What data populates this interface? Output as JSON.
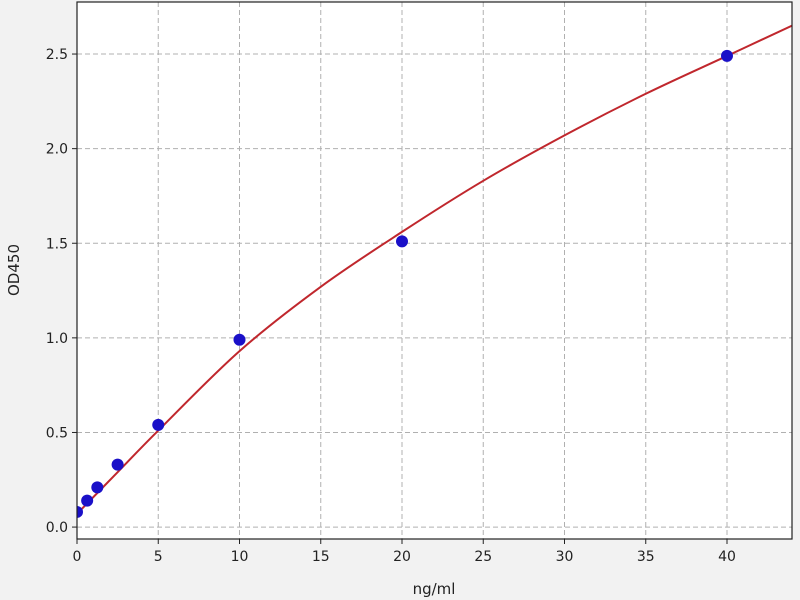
{
  "chart_data": {
    "type": "scatter",
    "xlabel": "ng/ml",
    "ylabel": "OD450",
    "xlim": [
      0,
      44
    ],
    "ylim": [
      -0.063,
      2.775
    ],
    "xticks": [
      0,
      5,
      10,
      15,
      20,
      25,
      30,
      35,
      40
    ],
    "yticks": [
      0.0,
      0.5,
      1.0,
      1.5,
      2.0,
      2.5
    ],
    "xtick_labels": [
      "0",
      "5",
      "10",
      "15",
      "20",
      "25",
      "30",
      "35",
      "40"
    ],
    "ytick_labels": [
      "0.0",
      "0.5",
      "1.0",
      "1.5",
      "2.0",
      "2.5"
    ],
    "grid": true,
    "points": {
      "x": [
        0,
        0.625,
        1.25,
        2.5,
        5,
        10,
        20,
        40
      ],
      "y": [
        0.08,
        0.14,
        0.21,
        0.33,
        0.54,
        0.99,
        1.51,
        2.49
      ],
      "color": "#1a10c8"
    },
    "fit_curve": {
      "x": [
        0,
        2.5,
        5,
        10,
        15,
        20,
        25,
        30,
        35,
        40,
        44
      ],
      "y": [
        0.07,
        0.29,
        0.51,
        0.93,
        1.27,
        1.56,
        1.83,
        2.07,
        2.29,
        2.49,
        2.65
      ],
      "color": "#c0272d"
    }
  }
}
